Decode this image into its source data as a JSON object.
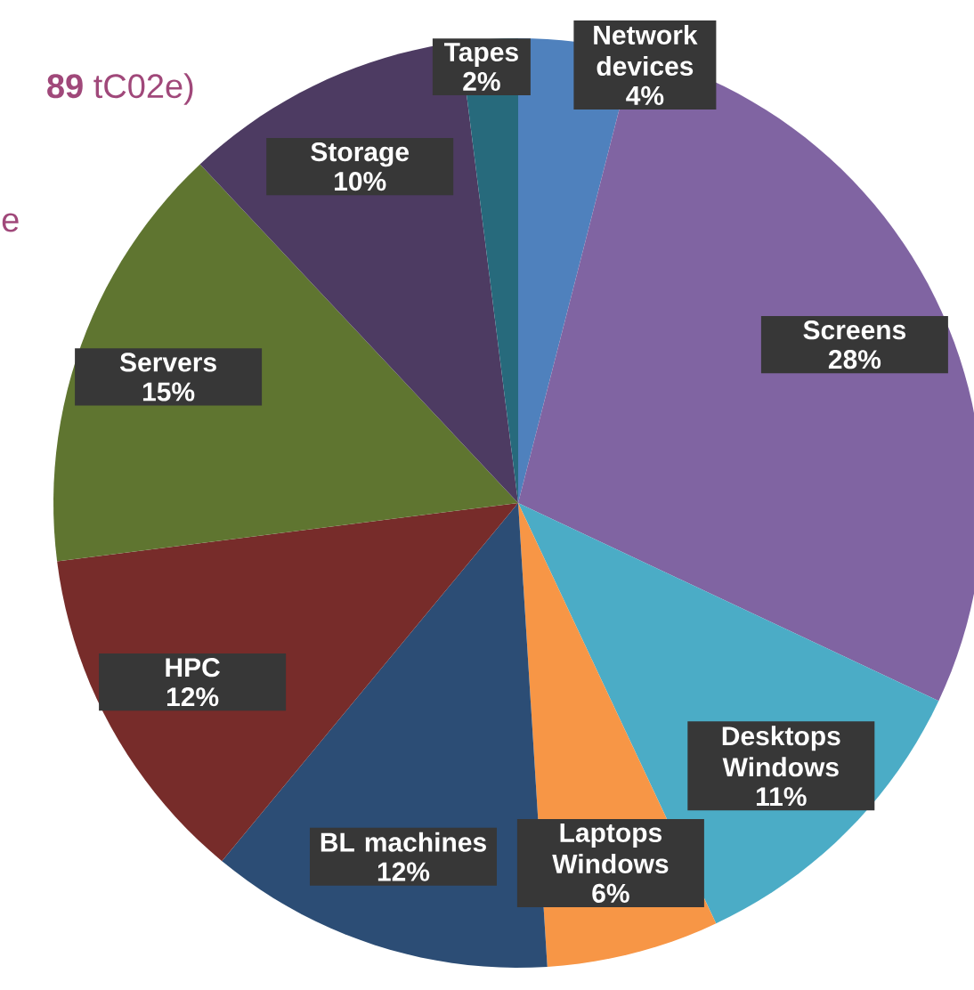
{
  "chart_data": {
    "type": "pie",
    "categories": [
      "Network devices",
      "Screens",
      "Desktops Windows",
      "Laptops Windows",
      "BL machines",
      "HPC",
      "Servers",
      "Storage",
      "Tapes"
    ],
    "values": [
      4,
      28,
      11,
      6,
      12,
      12,
      15,
      10,
      2
    ],
    "value_labels": [
      "4%",
      "28%",
      "11%",
      "6%",
      "12%",
      "12%",
      "15%",
      "10%",
      "2%"
    ],
    "colors": [
      "#4f81bd",
      "#8064a2",
      "#4bacc6",
      "#f79646",
      "#2c4d75",
      "#772c2a",
      "#5f7530",
      "#4d3b62",
      "#276a7c"
    ],
    "annotations": [
      "**89** tC02e)",
      "e"
    ],
    "legend": false
  }
}
